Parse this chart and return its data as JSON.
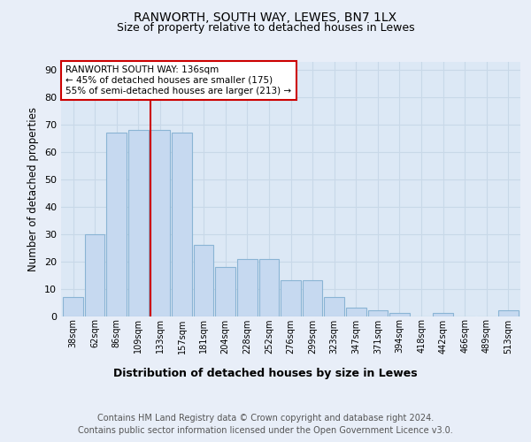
{
  "title1": "RANWORTH, SOUTH WAY, LEWES, BN7 1LX",
  "title2": "Size of property relative to detached houses in Lewes",
  "xlabel": "Distribution of detached houses by size in Lewes",
  "ylabel": "Number of detached properties",
  "categories": [
    "38sqm",
    "62sqm",
    "86sqm",
    "109sqm",
    "133sqm",
    "157sqm",
    "181sqm",
    "204sqm",
    "228sqm",
    "252sqm",
    "276sqm",
    "299sqm",
    "323sqm",
    "347sqm",
    "371sqm",
    "394sqm",
    "418sqm",
    "442sqm",
    "466sqm",
    "489sqm",
    "513sqm"
  ],
  "values": [
    7,
    30,
    67,
    68,
    68,
    67,
    26,
    18,
    21,
    21,
    13,
    13,
    7,
    3,
    2,
    1,
    0,
    1,
    0,
    0,
    2
  ],
  "bar_color": "#c6d9f0",
  "bar_edge_color": "#8ab4d4",
  "highlight_index": 4,
  "highlight_line_color": "#cc0000",
  "ylim": [
    0,
    93
  ],
  "yticks": [
    0,
    10,
    20,
    30,
    40,
    50,
    60,
    70,
    80,
    90
  ],
  "annotation_text": "RANWORTH SOUTH WAY: 136sqm\n← 45% of detached houses are smaller (175)\n55% of semi-detached houses are larger (213) →",
  "annotation_box_color": "#ffffff",
  "annotation_box_edge": "#cc0000",
  "footer": "Contains HM Land Registry data © Crown copyright and database right 2024.\nContains public sector information licensed under the Open Government Licence v3.0.",
  "bg_color": "#e8eef8",
  "plot_bg_color": "#dce8f5",
  "grid_color": "#c8d8e8",
  "title_fontsize": 10,
  "subtitle_fontsize": 9,
  "footer_fontsize": 7,
  "axis_label_fontsize": 8.5
}
